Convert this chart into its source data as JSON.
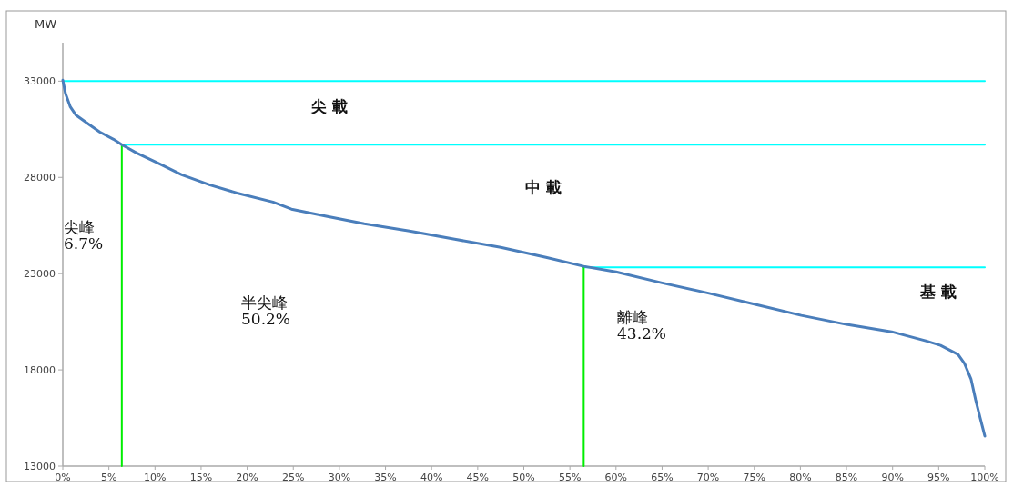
{
  "chart_data": {
    "type": "line",
    "ylabel": "MW",
    "xlim": [
      0,
      100
    ],
    "ylim": [
      13000,
      35000
    ],
    "xticks": [
      {
        "value": 0,
        "label": "0%"
      },
      {
        "value": 5,
        "label": "5%"
      },
      {
        "value": 10,
        "label": "10%"
      },
      {
        "value": 15,
        "label": "15%"
      },
      {
        "value": 20,
        "label": "20%"
      },
      {
        "value": 25,
        "label": "25%"
      },
      {
        "value": 30,
        "label": "30%"
      },
      {
        "value": 35,
        "label": "35%"
      },
      {
        "value": 40,
        "label": "40%"
      },
      {
        "value": 45,
        "label": "45%"
      },
      {
        "value": 50,
        "label": "50%"
      },
      {
        "value": 55,
        "label": "55%"
      },
      {
        "value": 60,
        "label": "60%"
      },
      {
        "value": 65,
        "label": "65%"
      },
      {
        "value": 70,
        "label": "70%"
      },
      {
        "value": 75,
        "label": "75%"
      },
      {
        "value": 80,
        "label": "80%"
      },
      {
        "value": 85,
        "label": "85%"
      },
      {
        "value": 90,
        "label": "90%"
      },
      {
        "value": 95,
        "label": "95%"
      },
      {
        "value": 100,
        "label": "100%"
      }
    ],
    "yticks": [
      13000,
      18000,
      23000,
      28000,
      33000
    ],
    "grid": false,
    "marker": "none",
    "line_style": "solid",
    "series": [
      {
        "color": "#00ffff",
        "x": [
          0,
          100
        ],
        "values": [
          33000,
          33000
        ]
      },
      {
        "color": "#00ffff",
        "x": [
          6.4,
          100
        ],
        "values": [
          29700,
          29700
        ]
      },
      {
        "color": "#00ffff",
        "x": [
          56.5,
          100
        ],
        "values": [
          23330,
          23330
        ]
      },
      {
        "color": "#00ee00",
        "x": [
          6.4,
          6.4
        ],
        "values": [
          13000,
          29700
        ]
      },
      {
        "color": "#00ee00",
        "x": [
          56.5,
          56.5
        ],
        "values": [
          13000,
          23330
        ]
      },
      {
        "color": "#4a7ebb",
        "x": [
          0,
          0.3,
          0.8,
          1.4,
          2.6,
          4,
          5.5,
          6.4,
          8,
          10.5,
          12.9,
          15.9,
          18.9,
          22.8,
          24.8,
          28.7,
          32.7,
          37.6,
          42.5,
          47.5,
          52.4,
          56.5,
          60,
          65,
          69.9,
          75.1,
          80.1,
          85,
          89.9,
          93.6,
          95.2,
          97.1,
          97.8,
          98.5,
          99,
          99.5,
          100
        ],
        "values": [
          33050,
          32340,
          31680,
          31250,
          30830,
          30360,
          29980,
          29700,
          29270,
          28700,
          28140,
          27620,
          27190,
          26720,
          26350,
          25970,
          25590,
          25220,
          24790,
          24370,
          23850,
          23380,
          23090,
          22520,
          22000,
          21400,
          20830,
          20360,
          19980,
          19510,
          19270,
          18800,
          18330,
          17530,
          16450,
          15500,
          14560
        ]
      }
    ],
    "annotations": [
      "尖 載",
      "中 載",
      "基 載",
      "尖峰\n6.7%",
      "半尖峰\n50.2%",
      "離峰\n43.2%"
    ]
  }
}
